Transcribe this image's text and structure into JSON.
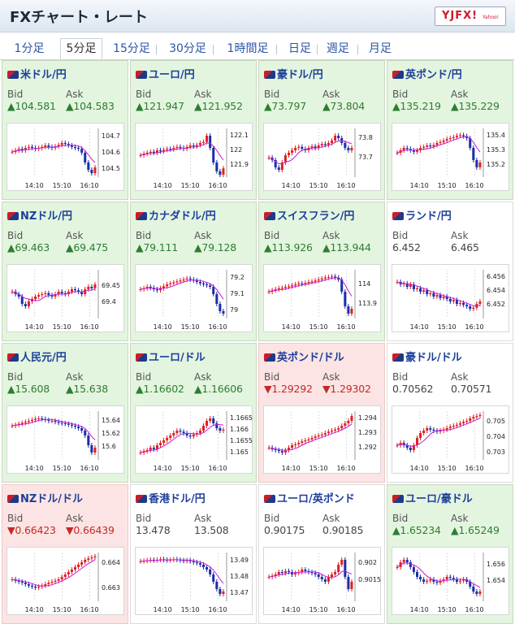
{
  "header": {
    "title": "FXチャート・レート",
    "logo": "YJFX!",
    "logo_sub": "Yahoo!"
  },
  "tabs": [
    "1分足",
    "5分足",
    "15分足",
    "30分足",
    "1時間足",
    "日足",
    "週足",
    "月足"
  ],
  "active_tab": "5分足",
  "colors": {
    "up": "#2e7d32",
    "down": "#c62828",
    "line": "#c71ce0",
    "bull": "#e02020",
    "bear": "#1a2fa8"
  },
  "labels": {
    "bid": "Bid",
    "ask": "Ask"
  },
  "pairs": [
    {
      "name": "米ドル/円",
      "dir": "up",
      "bid": "▲104.581",
      "ask": "▲104.583",
      "chart_data": {
        "type": "candlestick",
        "x_ticks": [
          "14:10",
          "15:10",
          "16:10"
        ],
        "y_ticks": [
          "104.7",
          "104.6",
          "104.5"
        ],
        "ylim": [
          104.45,
          104.75
        ],
        "shape": [
          0.52,
          0.55,
          0.58,
          0.55,
          0.6,
          0.62,
          0.6,
          0.58,
          0.6,
          0.62,
          0.65,
          0.62,
          0.6,
          0.63,
          0.66,
          0.7,
          0.68,
          0.65,
          0.62,
          0.6,
          0.58,
          0.5,
          0.3,
          0.15,
          0.08,
          0.2
        ]
      }
    },
    {
      "name": "ユーロ/円",
      "dir": "up",
      "bid": "▲121.947",
      "ask": "▲121.952",
      "chart_data": {
        "type": "candlestick",
        "x_ticks": [
          "14:10",
          "15:10",
          "16:10"
        ],
        "y_ticks": [
          "122.1",
          "122",
          "121.9"
        ],
        "ylim": [
          121.82,
          122.15
        ],
        "shape": [
          0.45,
          0.48,
          0.5,
          0.52,
          0.5,
          0.55,
          0.53,
          0.56,
          0.58,
          0.57,
          0.6,
          0.62,
          0.6,
          0.58,
          0.62,
          0.65,
          0.63,
          0.66,
          0.7,
          0.72,
          0.85,
          0.6,
          0.3,
          0.12,
          0.05,
          0.18
        ]
      }
    },
    {
      "name": "豪ドル/円",
      "dir": "up",
      "bid": "▲73.797",
      "ask": "▲73.804",
      "chart_data": {
        "type": "candlestick",
        "x_ticks": [
          "14:10",
          "15:10",
          "16:10"
        ],
        "y_ticks": [
          "73.8",
          "73.7"
        ],
        "ylim": [
          73.6,
          73.85
        ],
        "shape": [
          0.4,
          0.35,
          0.2,
          0.15,
          0.3,
          0.45,
          0.5,
          0.55,
          0.6,
          0.62,
          0.58,
          0.55,
          0.6,
          0.63,
          0.6,
          0.65,
          0.68,
          0.66,
          0.7,
          0.75,
          0.85,
          0.8,
          0.7,
          0.6,
          0.55,
          0.6
        ]
      }
    },
    {
      "name": "英ポンド/円",
      "dir": "up",
      "bid": "▲135.219",
      "ask": "▲135.229",
      "chart_data": {
        "type": "candlestick",
        "x_ticks": [
          "14:10",
          "15:10",
          "16:10"
        ],
        "y_ticks": [
          "135.4",
          "135.3",
          "135.2"
        ],
        "ylim": [
          135.12,
          135.45
        ],
        "shape": [
          0.5,
          0.55,
          0.6,
          0.58,
          0.55,
          0.52,
          0.55,
          0.6,
          0.62,
          0.65,
          0.63,
          0.66,
          0.7,
          0.72,
          0.75,
          0.78,
          0.8,
          0.82,
          0.85,
          0.86,
          0.84,
          0.8,
          0.6,
          0.35,
          0.2,
          0.3
        ]
      }
    },
    {
      "name": "NZドル/円",
      "dir": "up",
      "bid": "▲69.463",
      "ask": "▲69.475",
      "chart_data": {
        "type": "candlestick",
        "x_ticks": [
          "14:10",
          "15:10",
          "16:10"
        ],
        "y_ticks": [
          "69.45",
          "69.4"
        ],
        "ylim": [
          69.35,
          69.5
        ],
        "shape": [
          0.55,
          0.5,
          0.45,
          0.3,
          0.25,
          0.35,
          0.4,
          0.45,
          0.48,
          0.5,
          0.52,
          0.48,
          0.45,
          0.5,
          0.55,
          0.52,
          0.5,
          0.55,
          0.6,
          0.58,
          0.55,
          0.5,
          0.6,
          0.65,
          0.62,
          0.7
        ]
      }
    },
    {
      "name": "カナダドル/円",
      "dir": "up",
      "bid": "▲79.111",
      "ask": "▲79.128",
      "chart_data": {
        "type": "candlestick",
        "x_ticks": [
          "14:10",
          "15:10",
          "16:10"
        ],
        "y_ticks": [
          "79.2",
          "79.1",
          "79"
        ],
        "ylim": [
          78.95,
          79.25
        ],
        "shape": [
          0.6,
          0.62,
          0.65,
          0.63,
          0.6,
          0.58,
          0.62,
          0.66,
          0.7,
          0.72,
          0.74,
          0.76,
          0.78,
          0.8,
          0.82,
          0.8,
          0.78,
          0.75,
          0.72,
          0.7,
          0.68,
          0.65,
          0.5,
          0.3,
          0.15,
          0.1
        ]
      }
    },
    {
      "name": "スイスフラン/円",
      "dir": "up",
      "bid": "▲113.926",
      "ask": "▲113.944",
      "chart_data": {
        "type": "candlestick",
        "x_ticks": [
          "14:10",
          "15:10",
          "16:10"
        ],
        "y_ticks": [
          "114",
          "113.9"
        ],
        "ylim": [
          113.82,
          114.08
        ],
        "shape": [
          0.55,
          0.58,
          0.6,
          0.62,
          0.63,
          0.65,
          0.66,
          0.68,
          0.7,
          0.72,
          0.71,
          0.73,
          0.75,
          0.76,
          0.78,
          0.8,
          0.82,
          0.84,
          0.85,
          0.86,
          0.84,
          0.8,
          0.55,
          0.25,
          0.1,
          0.2
        ]
      }
    },
    {
      "name": "ランド/円",
      "dir": "flat",
      "bid": "6.452",
      "ask": "6.465",
      "chart_data": {
        "type": "candlestick",
        "x_ticks": [
          "14:10",
          "15:10",
          "16:10"
        ],
        "y_ticks": [
          "6.456",
          "6.454",
          "6.452"
        ],
        "ylim": [
          6.45,
          6.457
        ],
        "shape": [
          0.75,
          0.7,
          0.72,
          0.65,
          0.7,
          0.6,
          0.62,
          0.55,
          0.58,
          0.5,
          0.52,
          0.45,
          0.48,
          0.42,
          0.45,
          0.4,
          0.35,
          0.38,
          0.3,
          0.32,
          0.28,
          0.25,
          0.2,
          0.22,
          0.3,
          0.35
        ]
      }
    },
    {
      "name": "人民元/円",
      "dir": "up",
      "bid": "▲15.608",
      "ask": "▲15.638",
      "chart_data": {
        "type": "candlestick",
        "x_ticks": [
          "14:10",
          "15:10",
          "16:10"
        ],
        "y_ticks": [
          "15.64",
          "15.62",
          "15.6"
        ],
        "ylim": [
          15.58,
          15.655
        ],
        "shape": [
          0.7,
          0.72,
          0.74,
          0.76,
          0.78,
          0.8,
          0.82,
          0.84,
          0.85,
          0.84,
          0.82,
          0.8,
          0.8,
          0.78,
          0.76,
          0.75,
          0.74,
          0.72,
          0.7,
          0.68,
          0.65,
          0.6,
          0.5,
          0.3,
          0.15,
          0.25
        ]
      }
    },
    {
      "name": "ユーロ/ドル",
      "dir": "up",
      "bid": "▲1.16602",
      "ask": "▲1.16606",
      "chart_data": {
        "type": "candlestick",
        "x_ticks": [
          "14:10",
          "15:10",
          "16:10"
        ],
        "y_ticks": [
          "1.1665",
          "1.166",
          "1.1655",
          "1.165"
        ],
        "ylim": [
          1.1647,
          1.1668
        ],
        "shape": [
          0.15,
          0.18,
          0.2,
          0.25,
          0.22,
          0.3,
          0.35,
          0.4,
          0.45,
          0.5,
          0.55,
          0.6,
          0.58,
          0.55,
          0.5,
          0.48,
          0.52,
          0.55,
          0.6,
          0.7,
          0.8,
          0.85,
          0.75,
          0.65,
          0.6,
          0.62
        ]
      }
    },
    {
      "name": "英ポンド/ドル",
      "dir": "down",
      "bid": "▼1.29292",
      "ask": "▼1.29302",
      "chart_data": {
        "type": "candlestick",
        "x_ticks": [
          "14:10",
          "15:10",
          "16:10"
        ],
        "y_ticks": [
          "1.294",
          "1.293",
          "1.292"
        ],
        "ylim": [
          1.2912,
          1.2945
        ],
        "shape": [
          0.25,
          0.22,
          0.2,
          0.18,
          0.15,
          0.2,
          0.25,
          0.3,
          0.32,
          0.35,
          0.38,
          0.4,
          0.42,
          0.45,
          0.48,
          0.5,
          0.52,
          0.55,
          0.58,
          0.6,
          0.62,
          0.65,
          0.7,
          0.75,
          0.8,
          0.9
        ]
      }
    },
    {
      "name": "豪ドル/ドル",
      "dir": "flat",
      "bid": "0.70562",
      "ask": "0.70571",
      "chart_data": {
        "type": "candlestick",
        "x_ticks": [
          "14:10",
          "15:10",
          "16:10"
        ],
        "y_ticks": [
          "0.705",
          "0.704",
          "0.703"
        ],
        "ylim": [
          0.7025,
          0.7057
        ],
        "shape": [
          0.3,
          0.35,
          0.3,
          0.25,
          0.2,
          0.3,
          0.45,
          0.55,
          0.6,
          0.65,
          0.62,
          0.6,
          0.58,
          0.6,
          0.62,
          0.65,
          0.68,
          0.7,
          0.72,
          0.75,
          0.78,
          0.8,
          0.85,
          0.88,
          0.9,
          0.92
        ]
      }
    },
    {
      "name": "NZドル/ドル",
      "dir": "down",
      "bid": "▼0.66423",
      "ask": "▼0.66439",
      "chart_data": {
        "type": "candlestick",
        "x_ticks": [
          "14:10",
          "15:10",
          "16:10"
        ],
        "y_ticks": [
          "0.664",
          "0.663"
        ],
        "ylim": [
          0.6625,
          0.6644
        ],
        "shape": [
          0.45,
          0.42,
          0.4,
          0.38,
          0.35,
          0.32,
          0.3,
          0.28,
          0.3,
          0.32,
          0.35,
          0.38,
          0.4,
          0.42,
          0.45,
          0.5,
          0.55,
          0.6,
          0.65,
          0.7,
          0.75,
          0.8,
          0.85,
          0.88,
          0.9,
          0.92
        ]
      }
    },
    {
      "name": "香港ドル/円",
      "dir": "flat",
      "bid": "13.478",
      "ask": "13.508",
      "chart_data": {
        "type": "candlestick",
        "x_ticks": [
          "14:10",
          "15:10",
          "16:10"
        ],
        "y_ticks": [
          "13.49",
          "13.48",
          "13.47"
        ],
        "ylim": [
          13.465,
          13.495
        ],
        "shape": [
          0.82,
          0.83,
          0.84,
          0.85,
          0.84,
          0.85,
          0.86,
          0.85,
          0.84,
          0.85,
          0.86,
          0.85,
          0.84,
          0.83,
          0.84,
          0.82,
          0.8,
          0.78,
          0.75,
          0.7,
          0.65,
          0.55,
          0.4,
          0.25,
          0.15,
          0.2
        ]
      }
    },
    {
      "name": "ユーロ/英ポンド",
      "dir": "flat",
      "bid": "0.90175",
      "ask": "0.90185",
      "chart_data": {
        "type": "candlestick",
        "x_ticks": [
          "14:10",
          "15:10",
          "16:10"
        ],
        "y_ticks": [
          "0.902",
          "0.9015"
        ],
        "ylim": [
          0.9009,
          0.9023
        ],
        "shape": [
          0.5,
          0.52,
          0.55,
          0.6,
          0.58,
          0.62,
          0.6,
          0.55,
          0.58,
          0.6,
          0.65,
          0.62,
          0.6,
          0.58,
          0.55,
          0.5,
          0.45,
          0.4,
          0.5,
          0.55,
          0.6,
          0.75,
          0.85,
          0.5,
          0.25,
          0.4
        ]
      }
    },
    {
      "name": "ユーロ/豪ドル",
      "dir": "up",
      "bid": "▲1.65234",
      "ask": "▲1.65249",
      "chart_data": {
        "type": "candlestick",
        "x_ticks": [
          "14:10",
          "15:10",
          "16:10"
        ],
        "y_ticks": [
          "1.656",
          "1.654"
        ],
        "ylim": [
          1.6515,
          1.6575
        ],
        "shape": [
          0.7,
          0.8,
          0.85,
          0.8,
          0.7,
          0.6,
          0.5,
          0.45,
          0.4,
          0.42,
          0.45,
          0.4,
          0.38,
          0.42,
          0.45,
          0.5,
          0.48,
          0.45,
          0.4,
          0.42,
          0.45,
          0.4,
          0.3,
          0.2,
          0.15,
          0.2
        ]
      }
    }
  ]
}
